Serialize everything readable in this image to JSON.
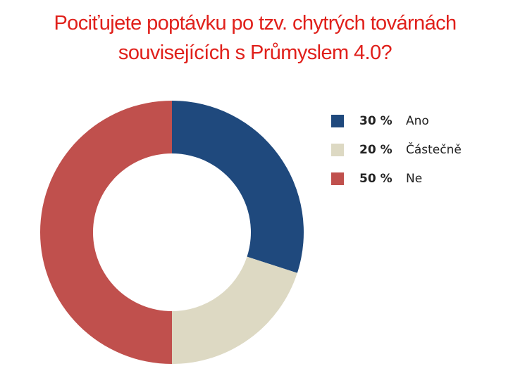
{
  "chart_data": {
    "type": "donut",
    "title": [
      "Pociťujete poptávku po tzv. chytrých továrnách",
      "souvisejících s Průmyslem 4.0?"
    ],
    "categories": [
      "Ano",
      "Částečně",
      "Ne"
    ],
    "values": [
      30,
      20,
      50
    ],
    "value_labels": [
      "30 %",
      "20 %",
      "50 %"
    ],
    "colors": [
      "#1f497d",
      "#ddd9c3",
      "#c0504d"
    ],
    "legend": "right"
  }
}
